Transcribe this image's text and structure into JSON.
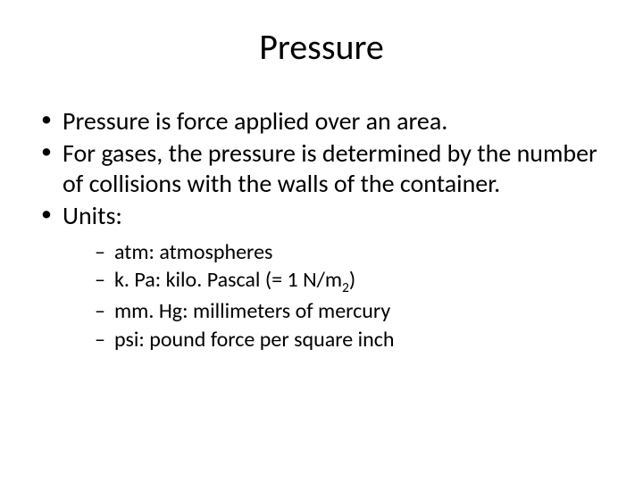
{
  "slide": {
    "title": "Pressure",
    "background_color": "#ffffff",
    "text_color": "#000000",
    "title_fontsize": 40,
    "body_fontsize": 28,
    "sub_fontsize": 24,
    "bullets": [
      {
        "text": "Pressure is force applied over an area."
      },
      {
        "text": "For gases, the pressure is determined by the number of collisions with the walls of the container."
      },
      {
        "text": "Units:",
        "sub": [
          {
            "prefix": "atm:  ",
            "rest": "atmospheres"
          },
          {
            "prefix": "k. Pa:  ",
            "rest": "kilo. Pascal (= 1 N/m",
            "subscript": "2",
            "tail": ")"
          },
          {
            "prefix": "mm. Hg: ",
            "rest": "millimeters of mercury"
          },
          {
            "prefix": "psi: ",
            "rest": "pound force per square inch"
          }
        ]
      }
    ]
  }
}
